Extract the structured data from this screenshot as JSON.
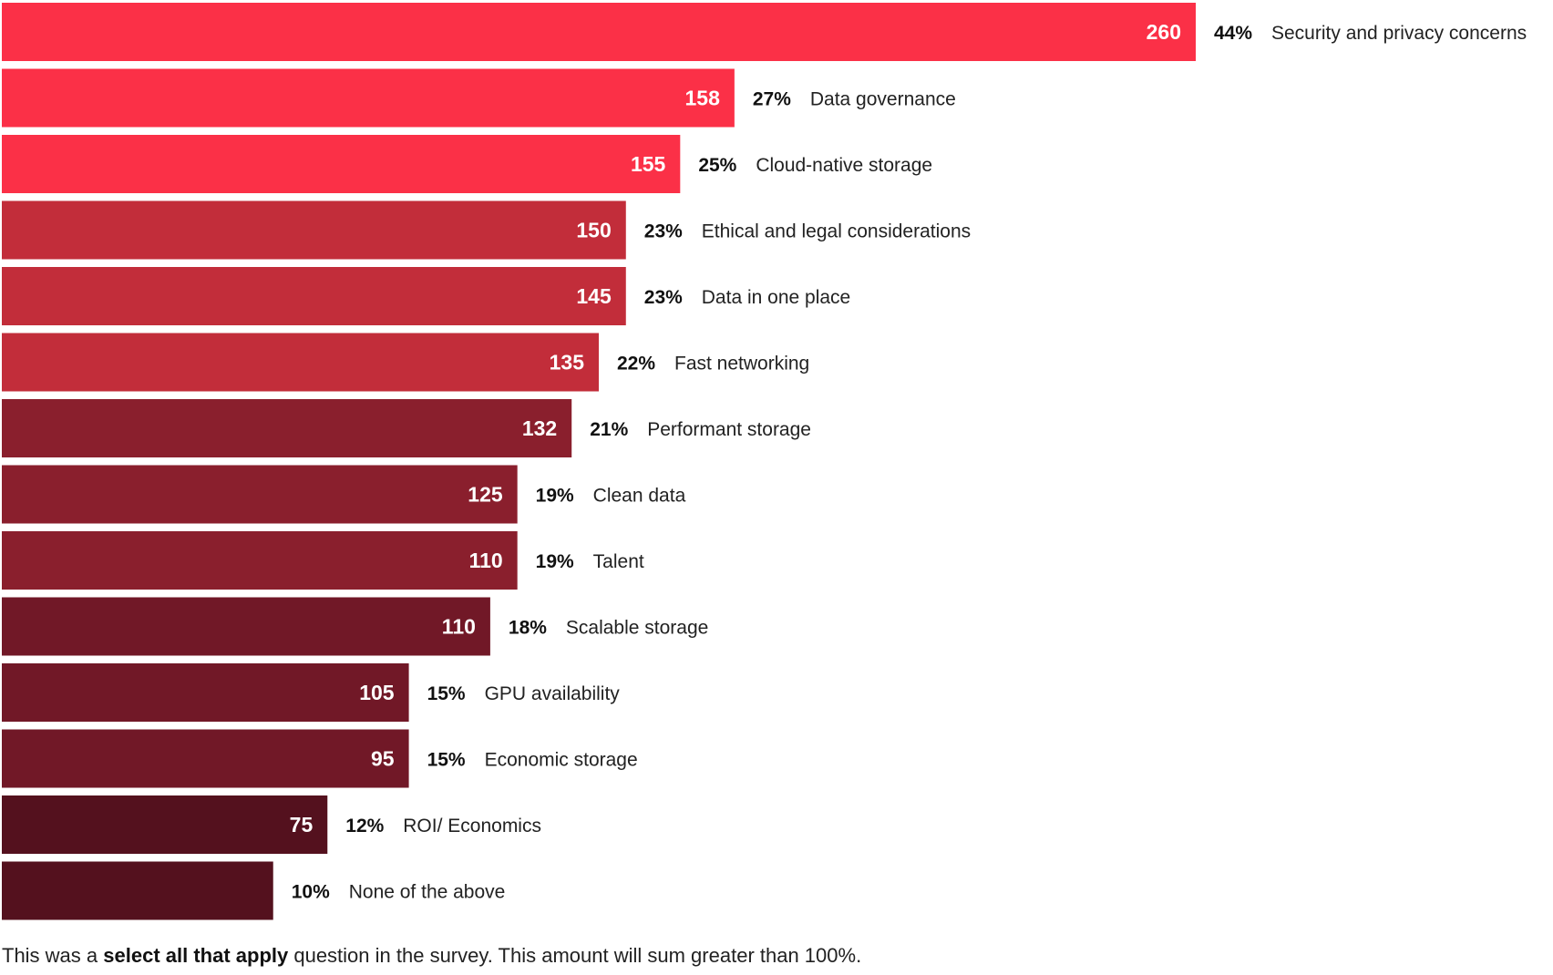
{
  "chart_data": {
    "type": "bar",
    "orientation": "horizontal",
    "categories": [
      "Security and privacy concerns",
      "Data governance",
      "Cloud-native storage",
      "Ethical and legal considerations",
      "Data in one place",
      "Fast networking",
      "Performant storage",
      "Clean data",
      "Talent",
      "Scalable storage",
      "GPU availability",
      "Economic storage",
      "ROI/ Economics",
      "None of the above"
    ],
    "series": [
      {
        "name": "Responses",
        "values": [
          260,
          158,
          155,
          150,
          145,
          135,
          132,
          125,
          110,
          110,
          105,
          95,
          75,
          null
        ],
        "value_labels": [
          "260",
          "158",
          "155",
          "150",
          "145",
          "135",
          "132",
          "125",
          "110",
          "110",
          "105",
          "95",
          "75",
          ""
        ]
      },
      {
        "name": "Percent",
        "values": [
          44,
          27,
          25,
          23,
          23,
          22,
          21,
          19,
          19,
          18,
          15,
          15,
          12,
          10
        ],
        "labels": [
          "44%",
          "27%",
          "25%",
          "23%",
          "23%",
          "22%",
          "21%",
          "19%",
          "19%",
          "18%",
          "15%",
          "15%",
          "12%",
          "10%"
        ]
      }
    ],
    "bar_colors": [
      "#FB3047",
      "#FB3047",
      "#FB3047",
      "#C22D3A",
      "#C22D3A",
      "#C22D3A",
      "#8A1F2D",
      "#8A1F2D",
      "#8A1F2D",
      "#711827",
      "#711827",
      "#711827",
      "#54111E",
      "#54111E"
    ],
    "title": "",
    "xlabel": "",
    "ylabel": "",
    "xlim": [
      0,
      60
    ],
    "grid": false,
    "legend": "none"
  },
  "footnote": {
    "before": "This was a ",
    "bold": "select all that apply",
    "after": " question in the survey. This amount will sum greater than 100%."
  }
}
